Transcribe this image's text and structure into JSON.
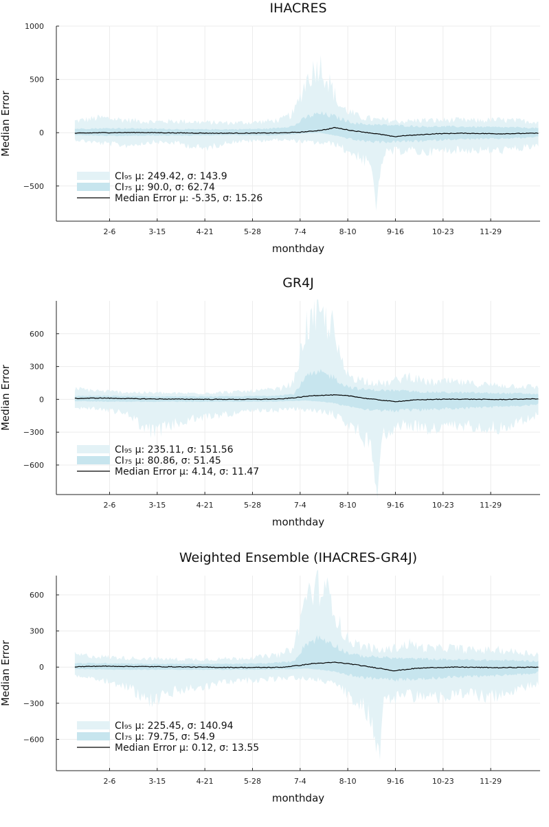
{
  "colors": {
    "ci95": "#e3f2f6",
    "ci75": "#c7e5ee",
    "median": "#000000",
    "grid": "#ececec",
    "axis": "#222222"
  },
  "chart_data": [
    {
      "type": "area",
      "title": "IHACRES",
      "xlabel": "monthday",
      "ylabel": "Median Error",
      "grid": true,
      "legend_position": "bottom-left",
      "xlim": [
        1,
        366
      ],
      "ylim": [
        -830,
        1000
      ],
      "x_ticks": [
        {
          "x": 37,
          "label": "2-6"
        },
        {
          "x": 74,
          "label": "3-15"
        },
        {
          "x": 111,
          "label": "4-21"
        },
        {
          "x": 148,
          "label": "5-28"
        },
        {
          "x": 185,
          "label": "7-4"
        },
        {
          "x": 222,
          "label": "8-10"
        },
        {
          "x": 259,
          "label": "9-16"
        },
        {
          "x": 296,
          "label": "10-23"
        },
        {
          "x": 333,
          "label": "11-29"
        }
      ],
      "y_ticks": [
        {
          "y": 1000,
          "label": "1000"
        },
        {
          "y": 500,
          "label": "500"
        },
        {
          "y": 0,
          "label": "0"
        },
        {
          "y": -500,
          "label": "−500"
        }
      ],
      "legend": [
        {
          "kind": "ci95",
          "label": "CI₉₅ μ: 249.42, σ: 143.9"
        },
        {
          "kind": "ci75",
          "label": "CI₇₅ μ: 90.0, σ: 62.74"
        },
        {
          "kind": "median",
          "label": "Median Error μ: -5.35, σ: 15.26"
        }
      ],
      "series": [
        {
          "name": "CI₉₅",
          "x": [
            10,
            30,
            50,
            70,
            90,
            110,
            130,
            150,
            170,
            180,
            190,
            200,
            210,
            215,
            220,
            230,
            240,
            245,
            250,
            260,
            270,
            280,
            290,
            300,
            320,
            340,
            360,
            370
          ],
          "upper": [
            100,
            130,
            110,
            95,
            100,
            90,
            85,
            90,
            110,
            170,
            460,
            600,
            380,
            240,
            200,
            140,
            120,
            110,
            110,
            100,
            100,
            110,
            105,
            110,
            105,
            110,
            100,
            95
          ],
          "lower": [
            -60,
            -90,
            -110,
            -80,
            -90,
            -140,
            -80,
            -70,
            -60,
            -70,
            -80,
            -90,
            -95,
            -110,
            -150,
            -200,
            -300,
            -620,
            -180,
            -160,
            -150,
            -170,
            -160,
            -150,
            -150,
            -155,
            -130,
            -110
          ]
        },
        {
          "name": "CI₇₅",
          "x": [
            10,
            40,
            70,
            100,
            130,
            160,
            180,
            190,
            200,
            210,
            220,
            230,
            245,
            260,
            280,
            300,
            330,
            360,
            370
          ],
          "upper": [
            35,
            40,
            35,
            30,
            30,
            35,
            60,
            140,
            170,
            150,
            110,
            80,
            70,
            65,
            55,
            55,
            50,
            45,
            40
          ],
          "lower": [
            -20,
            -30,
            -25,
            -25,
            -20,
            -25,
            -15,
            -5,
            0,
            -20,
            -45,
            -70,
            -85,
            -80,
            -75,
            -60,
            -55,
            -45,
            -35
          ]
        },
        {
          "name": "Median Error",
          "x": [
            10,
            30,
            60,
            90,
            120,
            150,
            170,
            185,
            195,
            205,
            212,
            225,
            235,
            250,
            258,
            265,
            275,
            290,
            310,
            340,
            370
          ],
          "values": [
            -5,
            0,
            2,
            -2,
            -5,
            -4,
            -2,
            5,
            15,
            30,
            48,
            20,
            5,
            -20,
            -38,
            -28,
            -22,
            -10,
            -5,
            -10,
            -5
          ]
        }
      ]
    },
    {
      "type": "area",
      "title": "GR4J",
      "xlabel": "monthday",
      "ylabel": "Median Error",
      "grid": true,
      "legend_position": "bottom-left",
      "xlim": [
        1,
        366
      ],
      "ylim": [
        -870,
        900
      ],
      "x_ticks": [
        {
          "x": 37,
          "label": "2-6"
        },
        {
          "x": 74,
          "label": "3-15"
        },
        {
          "x": 111,
          "label": "4-21"
        },
        {
          "x": 148,
          "label": "5-28"
        },
        {
          "x": 185,
          "label": "7-4"
        },
        {
          "x": 222,
          "label": "8-10"
        },
        {
          "x": 259,
          "label": "9-16"
        },
        {
          "x": 296,
          "label": "10-23"
        },
        {
          "x": 333,
          "label": "11-29"
        }
      ],
      "y_ticks": [
        {
          "y": 600,
          "label": "600"
        },
        {
          "y": 300,
          "label": "300"
        },
        {
          "y": 0,
          "label": "0"
        },
        {
          "y": -300,
          "label": "−300"
        },
        {
          "y": -600,
          "label": "−600"
        }
      ],
      "legend": [
        {
          "kind": "ci95",
          "label": "CI₉₅ μ: 235.11, σ: 151.56"
        },
        {
          "kind": "ci75",
          "label": "CI₇₅ μ: 80.86, σ: 51.45"
        },
        {
          "kind": "median",
          "label": "Median Error μ: 4.14, σ: 11.47"
        }
      ],
      "series": [
        {
          "name": "CI₉₅",
          "x": [
            10,
            30,
            50,
            70,
            90,
            110,
            130,
            150,
            170,
            180,
            190,
            200,
            210,
            215,
            220,
            230,
            240,
            245,
            250,
            260,
            270,
            280,
            290,
            300,
            320,
            340,
            360,
            370
          ],
          "upper": [
            90,
            70,
            60,
            55,
            50,
            55,
            60,
            70,
            90,
            140,
            620,
            700,
            620,
            380,
            230,
            170,
            150,
            140,
            130,
            160,
            200,
            150,
            140,
            150,
            130,
            120,
            110,
            100
          ],
          "lower": [
            -70,
            -80,
            -120,
            -280,
            -200,
            -150,
            -120,
            -100,
            -90,
            -80,
            -90,
            -100,
            -120,
            -150,
            -200,
            -260,
            -400,
            -680,
            -300,
            -220,
            -210,
            -240,
            -250,
            -230,
            -220,
            -240,
            -170,
            -130
          ]
        },
        {
          "name": "CI₇₅",
          "x": [
            10,
            40,
            70,
            100,
            130,
            160,
            180,
            190,
            200,
            210,
            220,
            230,
            245,
            260,
            280,
            300,
            330,
            360,
            370
          ],
          "upper": [
            30,
            30,
            25,
            25,
            25,
            30,
            45,
            200,
            230,
            200,
            120,
            90,
            80,
            75,
            65,
            60,
            55,
            50,
            45
          ],
          "lower": [
            -15,
            -20,
            -20,
            -20,
            -20,
            -20,
            -15,
            -10,
            -20,
            -30,
            -55,
            -75,
            -95,
            -100,
            -90,
            -80,
            -70,
            -55,
            -40
          ]
        },
        {
          "name": "Median Error",
          "x": [
            10,
            30,
            60,
            90,
            120,
            150,
            170,
            185,
            195,
            205,
            212,
            225,
            235,
            250,
            258,
            265,
            275,
            290,
            310,
            340,
            370
          ],
          "values": [
            8,
            12,
            5,
            2,
            0,
            0,
            3,
            20,
            35,
            38,
            40,
            30,
            10,
            -10,
            -20,
            -15,
            -5,
            0,
            2,
            -2,
            5
          ]
        }
      ]
    },
    {
      "type": "area",
      "title": "Weighted Ensemble (IHACRES-GR4J)",
      "xlabel": "monthday",
      "ylabel": "Median Error",
      "grid": true,
      "legend_position": "bottom-left",
      "xlim": [
        1,
        366
      ],
      "ylim": [
        -860,
        760
      ],
      "x_ticks": [
        {
          "x": 37,
          "label": "2-6"
        },
        {
          "x": 74,
          "label": "3-15"
        },
        {
          "x": 111,
          "label": "4-21"
        },
        {
          "x": 148,
          "label": "5-28"
        },
        {
          "x": 185,
          "label": "7-4"
        },
        {
          "x": 222,
          "label": "8-10"
        },
        {
          "x": 259,
          "label": "9-16"
        },
        {
          "x": 296,
          "label": "10-23"
        },
        {
          "x": 333,
          "label": "11-29"
        }
      ],
      "y_ticks": [
        {
          "y": 600,
          "label": "600"
        },
        {
          "y": 300,
          "label": "300"
        },
        {
          "y": 0,
          "label": "0"
        },
        {
          "y": -300,
          "label": "−300"
        },
        {
          "y": -600,
          "label": "−600"
        }
      ],
      "legend": [
        {
          "kind": "ci95",
          "label": "CI₉₅ μ: 225.45, σ: 140.94"
        },
        {
          "kind": "ci75",
          "label": "CI₇₅ μ: 79.75, σ: 54.9"
        },
        {
          "kind": "median",
          "label": "Median Error μ: 0.12, σ: 13.55"
        }
      ],
      "series": [
        {
          "name": "CI₉₅",
          "x": [
            10,
            30,
            50,
            70,
            90,
            110,
            130,
            150,
            170,
            180,
            190,
            200,
            210,
            215,
            220,
            230,
            240,
            245,
            250,
            260,
            270,
            280,
            290,
            300,
            320,
            340,
            360,
            370
          ],
          "upper": [
            95,
            80,
            70,
            65,
            60,
            60,
            65,
            75,
            95,
            150,
            560,
            620,
            520,
            340,
            230,
            170,
            150,
            130,
            130,
            150,
            180,
            150,
            140,
            150,
            130,
            130,
            110,
            100
          ],
          "lower": [
            -65,
            -90,
            -150,
            -260,
            -180,
            -150,
            -110,
            -100,
            -90,
            -80,
            -90,
            -100,
            -110,
            -140,
            -200,
            -260,
            -380,
            -760,
            -300,
            -220,
            -210,
            -230,
            -230,
            -220,
            -210,
            -230,
            -160,
            -120
          ]
        },
        {
          "name": "CI₇₅",
          "x": [
            10,
            40,
            70,
            100,
            130,
            160,
            180,
            190,
            200,
            210,
            220,
            230,
            245,
            260,
            280,
            300,
            330,
            360,
            370
          ],
          "upper": [
            30,
            30,
            25,
            25,
            25,
            30,
            45,
            190,
            230,
            190,
            120,
            90,
            80,
            70,
            65,
            60,
            55,
            50,
            45
          ],
          "lower": [
            -15,
            -20,
            -20,
            -20,
            -20,
            -20,
            -15,
            -10,
            -20,
            -30,
            -55,
            -75,
            -95,
            -100,
            -90,
            -80,
            -70,
            -55,
            -40
          ]
        },
        {
          "name": "Median Error",
          "x": [
            10,
            30,
            60,
            90,
            120,
            150,
            170,
            185,
            195,
            205,
            212,
            225,
            235,
            250,
            258,
            265,
            275,
            290,
            310,
            340,
            370
          ],
          "values": [
            3,
            8,
            5,
            2,
            -2,
            -3,
            -2,
            15,
            30,
            35,
            40,
            25,
            8,
            -15,
            -30,
            -22,
            -10,
            -3,
            0,
            -5,
            0
          ]
        }
      ]
    }
  ]
}
